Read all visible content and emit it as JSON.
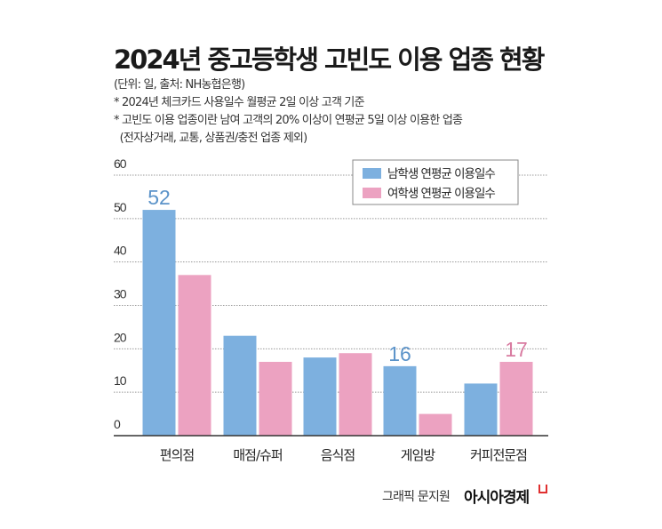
{
  "title": "2024년 중고등학생 고빈도 이용 업종 현황",
  "notes": [
    "(단위: 일, 출처: NH농협은행)",
    "* 2024년 체크카드 사용일수 월평균 2일 이상 고객 기준",
    "* 고빈도 이용 업종이란 남여 고객의 20% 이상이 연평균 5일 이상 이용한 업종",
    "  (전자상거래, 교통, 상품권/충전 업종 제외)"
  ],
  "credit": "그래픽 문지원",
  "brand": "아시아경제",
  "colors": {
    "male": "#7db0df",
    "female": "#eca2c1",
    "male_label": "#5b93c9",
    "female_label": "#d87aa0",
    "grid": "#999999"
  },
  "chart_data": {
    "type": "bar",
    "categories": [
      "편의점",
      "매점/슈퍼",
      "음식점",
      "게임방",
      "커피전문점"
    ],
    "series": [
      {
        "name": "남학생 연평균 이용일수",
        "values": [
          52,
          23,
          18,
          16,
          12
        ]
      },
      {
        "name": "여학생 연평균 이용일수",
        "values": [
          37,
          17,
          19,
          5,
          17
        ]
      }
    ],
    "data_labels": [
      {
        "series": 0,
        "category": 0,
        "text": "52"
      },
      {
        "series": 0,
        "category": 3,
        "text": "16"
      },
      {
        "series": 1,
        "category": 4,
        "text": "17"
      }
    ],
    "yticks": [
      "0",
      "10",
      "20",
      "30",
      "40",
      "50",
      "60"
    ],
    "ylim": [
      0,
      60
    ],
    "grid": true,
    "legend": "top-right"
  }
}
